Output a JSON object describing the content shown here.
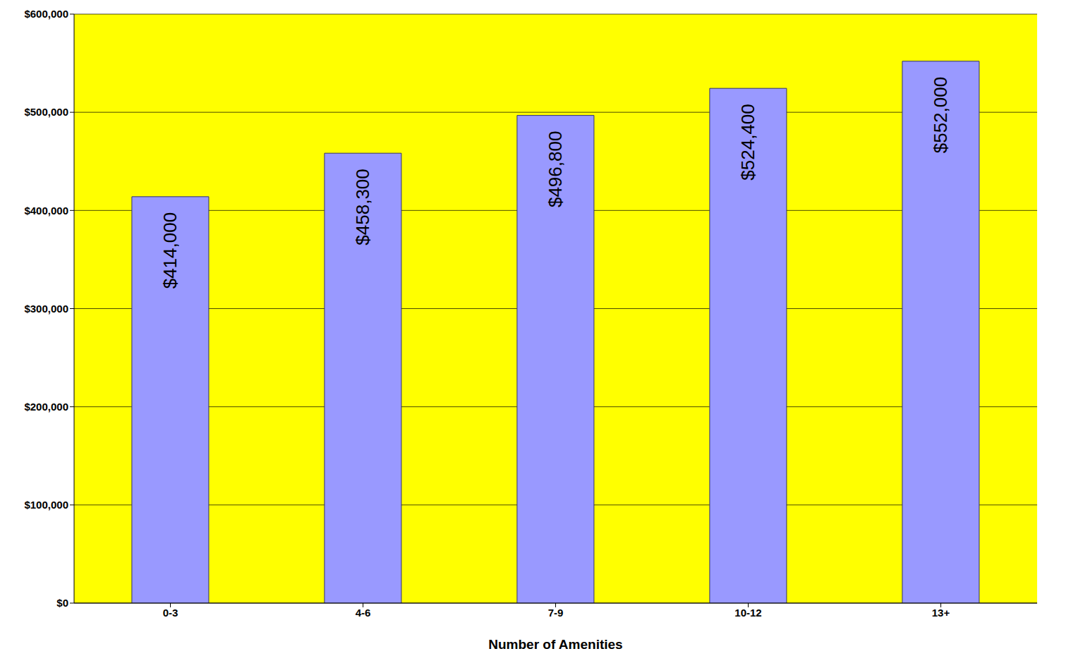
{
  "chart_data": {
    "type": "bar",
    "x_label": "Number of Amenities",
    "categories": [
      "0-3",
      "4-6",
      "7-9",
      "10-12",
      "13+"
    ],
    "values": [
      414000,
      458300,
      496800,
      524400,
      552000
    ],
    "value_labels": [
      "$414,000",
      "$458,300",
      "$496,800",
      "$524,400",
      "$552,000"
    ],
    "data_labels": true,
    "color": "#9999ff",
    "ylim": [
      0,
      600000
    ],
    "yticks": [
      {
        "value": 0,
        "label": "$0"
      },
      {
        "value": 100000,
        "label": "$100,000"
      },
      {
        "value": 200000,
        "label": "$200,000"
      },
      {
        "value": 300000,
        "label": "$300,000"
      },
      {
        "value": 400000,
        "label": "$400,000"
      },
      {
        "value": 500000,
        "label": "$500,000"
      },
      {
        "value": 600000,
        "label": "$600,000"
      }
    ],
    "grid": true
  }
}
